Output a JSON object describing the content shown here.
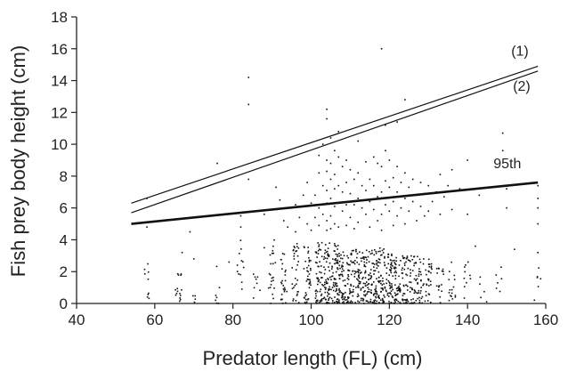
{
  "chart_data": {
    "type": "scatter",
    "xlabel": "Predator length (FL) (cm)",
    "ylabel": "Fish prey body height (cm)",
    "xlim": [
      40,
      160
    ],
    "ylim": [
      0,
      18
    ],
    "xticks": [
      "40",
      "60",
      "80",
      "100",
      "120",
      "140",
      "160"
    ],
    "yticks": [
      "0",
      "2",
      "4",
      "6",
      "8",
      "10",
      "12",
      "14",
      "16",
      "18"
    ],
    "grid": false,
    "lines": [
      {
        "label": "(1)",
        "x": [
          54,
          158
        ],
        "y": [
          6.3,
          14.9
        ],
        "style": "thin"
      },
      {
        "label": "(2)",
        "x": [
          54,
          158
        ],
        "y": [
          5.7,
          14.6
        ],
        "style": "thin"
      },
      {
        "label": "95th",
        "x": [
          54,
          158
        ],
        "y": [
          5.0,
          7.6
        ],
        "style": "thick"
      }
    ],
    "scatter_density_bands": [
      {
        "x": 58,
        "n": 9,
        "ymax": 2.5
      },
      {
        "x": 66,
        "n": 15,
        "ymax": 2.2
      },
      {
        "x": 70,
        "n": 4,
        "ymax": 1.5
      },
      {
        "x": 76,
        "n": 7,
        "ymax": 2.5
      },
      {
        "x": 82,
        "n": 12,
        "ymax": 4.2
      },
      {
        "x": 86,
        "n": 8,
        "ymax": 2.0
      },
      {
        "x": 90,
        "n": 22,
        "ymax": 4.0
      },
      {
        "x": 93,
        "n": 26,
        "ymax": 3.2
      },
      {
        "x": 96,
        "n": 32,
        "ymax": 3.8
      },
      {
        "x": 99,
        "n": 40,
        "ymax": 3.6
      },
      {
        "x": 102,
        "n": 55,
        "ymax": 4.0
      },
      {
        "x": 104,
        "n": 60,
        "ymax": 3.8
      },
      {
        "x": 106,
        "n": 62,
        "ymax": 3.8
      },
      {
        "x": 108,
        "n": 55,
        "ymax": 3.5
      },
      {
        "x": 110,
        "n": 50,
        "ymax": 3.5
      },
      {
        "x": 112,
        "n": 48,
        "ymax": 3.5
      },
      {
        "x": 114,
        "n": 55,
        "ymax": 3.5
      },
      {
        "x": 116,
        "n": 58,
        "ymax": 3.5
      },
      {
        "x": 118,
        "n": 60,
        "ymax": 3.5
      },
      {
        "x": 120,
        "n": 55,
        "ymax": 3.5
      },
      {
        "x": 122,
        "n": 50,
        "ymax": 3.2
      },
      {
        "x": 124,
        "n": 45,
        "ymax": 3.0
      },
      {
        "x": 126,
        "n": 38,
        "ymax": 3.2
      },
      {
        "x": 128,
        "n": 32,
        "ymax": 3.0
      },
      {
        "x": 130,
        "n": 28,
        "ymax": 3.0
      },
      {
        "x": 133,
        "n": 18,
        "ymax": 2.6
      },
      {
        "x": 136,
        "n": 16,
        "ymax": 2.6
      },
      {
        "x": 140,
        "n": 10,
        "ymax": 2.8
      },
      {
        "x": 144,
        "n": 5,
        "ymax": 2.0
      },
      {
        "x": 148,
        "n": 6,
        "ymax": 2.4
      },
      {
        "x": 158,
        "n": 6,
        "ymax": 2.6
      }
    ],
    "scatter_points": [
      [
        58,
        6.6
      ],
      [
        58,
        4.8
      ],
      [
        67,
        3.2
      ],
      [
        69,
        4.5
      ],
      [
        70,
        2.8
      ],
      [
        76,
        8.8
      ],
      [
        79,
        2.6
      ],
      [
        82,
        5.5
      ],
      [
        82,
        4.8
      ],
      [
        84,
        14.2
      ],
      [
        84,
        12.5
      ],
      [
        84,
        7.8
      ],
      [
        88,
        5.6
      ],
      [
        88,
        3.5
      ],
      [
        91,
        7.3
      ],
      [
        92,
        6.5
      ],
      [
        93,
        5.2
      ],
      [
        94,
        4.8
      ],
      [
        96,
        6.2
      ],
      [
        96,
        4.5
      ],
      [
        97,
        5.4
      ],
      [
        98,
        6.8
      ],
      [
        99,
        7.6
      ],
      [
        99,
        5.0
      ],
      [
        100,
        6.3
      ],
      [
        100,
        4.6
      ],
      [
        101,
        6.8
      ],
      [
        101,
        5.4
      ],
      [
        102,
        9.3
      ],
      [
        102,
        8.2
      ],
      [
        102,
        6.0
      ],
      [
        102,
        4.9
      ],
      [
        103,
        10.0
      ],
      [
        103,
        7.4
      ],
      [
        103,
        5.6
      ],
      [
        104,
        12.2
      ],
      [
        104,
        11.6
      ],
      [
        104,
        9.0
      ],
      [
        104,
        8.3
      ],
      [
        104,
        7.1
      ],
      [
        104,
        6.3
      ],
      [
        104,
        5.2
      ],
      [
        104,
        4.6
      ],
      [
        105,
        10.4
      ],
      [
        105,
        8.8
      ],
      [
        105,
        7.8
      ],
      [
        105,
        6.6
      ],
      [
        105,
        5.5
      ],
      [
        105,
        4.7
      ],
      [
        106,
        9.6
      ],
      [
        106,
        8.1
      ],
      [
        106,
        7.2
      ],
      [
        106,
        6.1
      ],
      [
        106,
        5.0
      ],
      [
        107,
        10.8
      ],
      [
        107,
        9.2
      ],
      [
        107,
        7.4
      ],
      [
        107,
        6.3
      ],
      [
        107,
        4.8
      ],
      [
        108,
        8.6
      ],
      [
        108,
        7.0
      ],
      [
        108,
        5.8
      ],
      [
        109,
        9.0
      ],
      [
        109,
        7.6
      ],
      [
        109,
        6.2
      ],
      [
        109,
        4.9
      ],
      [
        110,
        8.4
      ],
      [
        110,
        6.9
      ],
      [
        110,
        5.4
      ],
      [
        111,
        7.8
      ],
      [
        111,
        6.2
      ],
      [
        111,
        4.7
      ],
      [
        112,
        10.2
      ],
      [
        112,
        8.2
      ],
      [
        112,
        6.6
      ],
      [
        112,
        5.1
      ],
      [
        113,
        7.4
      ],
      [
        113,
        6.0
      ],
      [
        114,
        8.9
      ],
      [
        114,
        7.1
      ],
      [
        114,
        5.6
      ],
      [
        115,
        7.8
      ],
      [
        115,
        6.4
      ],
      [
        115,
        4.8
      ],
      [
        116,
        9.2
      ],
      [
        116,
        7.4
      ],
      [
        116,
        5.9
      ],
      [
        117,
        8.8
      ],
      [
        117,
        6.7
      ],
      [
        117,
        5.2
      ],
      [
        118,
        16.0
      ],
      [
        118,
        8.6
      ],
      [
        118,
        7.0
      ],
      [
        118,
        5.6
      ],
      [
        118,
        4.6
      ],
      [
        119,
        11.2
      ],
      [
        119,
        9.6
      ],
      [
        119,
        7.7
      ],
      [
        119,
        6.2
      ],
      [
        120,
        9.0
      ],
      [
        120,
        7.3
      ],
      [
        120,
        5.8
      ],
      [
        121,
        7.9
      ],
      [
        121,
        6.4
      ],
      [
        121,
        4.9
      ],
      [
        122,
        11.4
      ],
      [
        122,
        8.6
      ],
      [
        122,
        7.0
      ],
      [
        122,
        5.5
      ],
      [
        123,
        7.6
      ],
      [
        123,
        6.0
      ],
      [
        124,
        12.8
      ],
      [
        124,
        8.2
      ],
      [
        124,
        6.6
      ],
      [
        124,
        5.0
      ],
      [
        125,
        7.3
      ],
      [
        125,
        5.8
      ],
      [
        126,
        7.8
      ],
      [
        126,
        6.4
      ],
      [
        127,
        6.8
      ],
      [
        127,
        5.2
      ],
      [
        128,
        7.6
      ],
      [
        128,
        6.1
      ],
      [
        129,
        6.9
      ],
      [
        129,
        5.5
      ],
      [
        130,
        7.4
      ],
      [
        130,
        5.8
      ],
      [
        131,
        6.4
      ],
      [
        132,
        7.0
      ],
      [
        133,
        8.1
      ],
      [
        133,
        5.6
      ],
      [
        134,
        6.7
      ],
      [
        135,
        7.4
      ],
      [
        136,
        5.9
      ],
      [
        136,
        8.4
      ],
      [
        138,
        7.2
      ],
      [
        140,
        9.0
      ],
      [
        140,
        5.6
      ],
      [
        142,
        3.6
      ],
      [
        143,
        6.8
      ],
      [
        149,
        10.7
      ],
      [
        149,
        9.6
      ],
      [
        150,
        7.2
      ],
      [
        150,
        6.0
      ],
      [
        152,
        3.4
      ],
      [
        158,
        7.4
      ],
      [
        158,
        6.6
      ],
      [
        158,
        6.0
      ],
      [
        158,
        5.0
      ],
      [
        158,
        3.2
      ]
    ]
  }
}
